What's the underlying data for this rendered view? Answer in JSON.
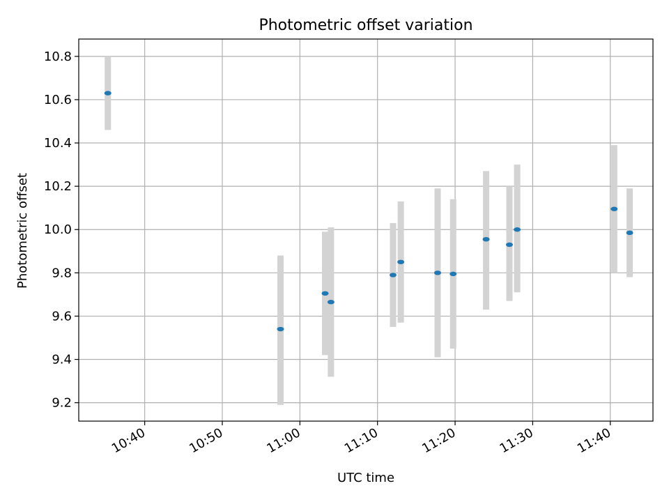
{
  "chart_data": {
    "type": "scatter",
    "title": "Photometric offset variation",
    "xlabel": "UTC time",
    "ylabel": "Photometric offset",
    "x_axis": "time",
    "xlim": [
      "10:31:30",
      "11:45:30"
    ],
    "ylim": [
      9.115,
      10.88
    ],
    "grid": true,
    "legend": false,
    "x_ticks": [
      "10:40",
      "10:50",
      "11:00",
      "11:10",
      "11:20",
      "11:30",
      "11:40"
    ],
    "y_ticks": [
      9.2,
      9.4,
      9.6,
      9.8,
      10.0,
      10.2,
      10.4,
      10.6,
      10.8
    ],
    "y_tick_labels": [
      "9.2",
      "9.4",
      "9.6",
      "9.8",
      "10.0",
      "10.2",
      "10.4",
      "10.6",
      "10.8"
    ],
    "marker_color": "#1f77b4",
    "errorbar_color": "#d3d3d3",
    "points": [
      {
        "x": "10:35:15",
        "y": 10.63,
        "yerr_low": 10.46,
        "yerr_high": 10.8
      },
      {
        "x": "10:57:30",
        "y": 9.54,
        "yerr_low": 9.19,
        "yerr_high": 9.88
      },
      {
        "x": "11:03:15",
        "y": 9.705,
        "yerr_low": 9.42,
        "yerr_high": 9.99
      },
      {
        "x": "11:04:00",
        "y": 9.665,
        "yerr_low": 9.32,
        "yerr_high": 10.01
      },
      {
        "x": "11:12:00",
        "y": 9.79,
        "yerr_low": 9.55,
        "yerr_high": 10.03
      },
      {
        "x": "11:13:00",
        "y": 9.85,
        "yerr_low": 9.57,
        "yerr_high": 10.13
      },
      {
        "x": "11:17:45",
        "y": 9.8,
        "yerr_low": 9.41,
        "yerr_high": 10.19
      },
      {
        "x": "11:19:45",
        "y": 9.795,
        "yerr_low": 9.45,
        "yerr_high": 10.14
      },
      {
        "x": "11:24:00",
        "y": 9.955,
        "yerr_low": 9.63,
        "yerr_high": 10.27
      },
      {
        "x": "11:27:00",
        "y": 9.93,
        "yerr_low": 9.67,
        "yerr_high": 10.2
      },
      {
        "x": "11:28:00",
        "y": 10.0,
        "yerr_low": 9.71,
        "yerr_high": 10.3
      },
      {
        "x": "11:40:30",
        "y": 10.095,
        "yerr_low": 9.8,
        "yerr_high": 10.39
      },
      {
        "x": "11:42:30",
        "y": 9.985,
        "yerr_low": 9.78,
        "yerr_high": 10.19
      }
    ]
  }
}
